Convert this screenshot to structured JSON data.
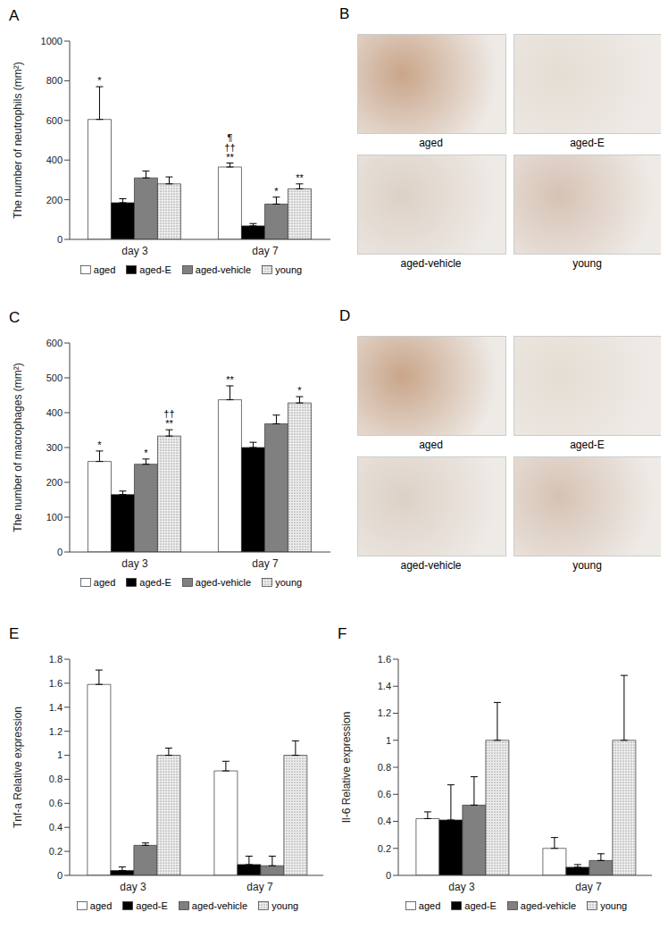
{
  "chart_data": [
    {
      "panel": "A",
      "type": "bar",
      "y_label": "The number of neutrophils (mm²)",
      "categories": [
        "day 3",
        "day 7"
      ],
      "ylim": [
        0,
        1000
      ],
      "yticks": [
        0,
        200,
        400,
        600,
        800,
        1000
      ],
      "grid": false,
      "legend": "bottom",
      "series": [
        {
          "name": "aged",
          "color": "#ffffff",
          "values": [
            605,
            365
          ],
          "errors": [
            165,
            20
          ],
          "annotations": [
            [
              "*"
            ],
            [
              "¶",
              "††",
              "**"
            ]
          ]
        },
        {
          "name": "aged-E",
          "color": "#000000",
          "values": [
            185,
            68
          ],
          "errors": [
            20,
            12
          ],
          "annotations": [
            [],
            []
          ]
        },
        {
          "name": "aged-vehicle",
          "color": "#808080",
          "values": [
            310,
            178
          ],
          "errors": [
            35,
            35
          ],
          "annotations": [
            [],
            [
              "*"
            ]
          ]
        },
        {
          "name": "young",
          "color": "#eeeeee",
          "values": [
            280,
            255
          ],
          "errors": [
            35,
            25
          ],
          "annotations": [
            [],
            [
              "**"
            ]
          ]
        }
      ]
    },
    {
      "panel": "C",
      "type": "bar",
      "y_label": "The number of macrophages (mm²)",
      "categories": [
        "day 3",
        "day 7"
      ],
      "ylim": [
        0,
        600
      ],
      "yticks": [
        0,
        100,
        200,
        300,
        400,
        500,
        600
      ],
      "grid": false,
      "legend": "bottom",
      "series": [
        {
          "name": "aged",
          "color": "#ffffff",
          "values": [
            260,
            437
          ],
          "errors": [
            30,
            40
          ],
          "annotations": [
            [
              "*"
            ],
            [
              "**"
            ]
          ]
        },
        {
          "name": "aged-E",
          "color": "#000000",
          "values": [
            165,
            300
          ],
          "errors": [
            10,
            15
          ],
          "annotations": [
            [],
            []
          ]
        },
        {
          "name": "aged-vehicle",
          "color": "#808080",
          "values": [
            252,
            368
          ],
          "errors": [
            15,
            25
          ],
          "annotations": [
            [
              "*"
            ],
            []
          ]
        },
        {
          "name": "young",
          "color": "#eeeeee",
          "values": [
            333,
            428
          ],
          "errors": [
            18,
            18
          ],
          "annotations": [
            [
              "††",
              "**"
            ],
            [
              "*"
            ]
          ]
        }
      ]
    },
    {
      "panel": "E",
      "type": "bar",
      "y_label": "Tnf-a Relative expression",
      "categories": [
        "day 3",
        "day 7"
      ],
      "ylim": [
        0,
        1.8
      ],
      "yticks": [
        0,
        0.2,
        0.4,
        0.6,
        0.8,
        1,
        1.2,
        1.4,
        1.6,
        1.8
      ],
      "grid": false,
      "legend": "bottom",
      "series": [
        {
          "name": "aged",
          "color": "#ffffff",
          "values": [
            1.59,
            0.87
          ],
          "errors": [
            0.12,
            0.08
          ],
          "annotations": [
            [],
            []
          ]
        },
        {
          "name": "aged-E",
          "color": "#000000",
          "values": [
            0.04,
            0.09
          ],
          "errors": [
            0.03,
            0.07
          ],
          "annotations": [
            [],
            []
          ]
        },
        {
          "name": "aged-vehicle",
          "color": "#808080",
          "values": [
            0.25,
            0.08
          ],
          "errors": [
            0.02,
            0.08
          ],
          "annotations": [
            [],
            []
          ]
        },
        {
          "name": "young",
          "color": "#eeeeee",
          "values": [
            1.0,
            1.0
          ],
          "errors": [
            0.06,
            0.12
          ],
          "annotations": [
            [],
            []
          ]
        }
      ]
    },
    {
      "panel": "F",
      "type": "bar",
      "y_label": "Il-6 Relative expression",
      "categories": [
        "day 3",
        "day 7"
      ],
      "ylim": [
        0,
        1.6
      ],
      "yticks": [
        0,
        0.2,
        0.4,
        0.6,
        0.8,
        1,
        1.2,
        1.4,
        1.6
      ],
      "grid": false,
      "legend": "bottom",
      "series": [
        {
          "name": "aged",
          "color": "#ffffff",
          "values": [
            0.42,
            0.2
          ],
          "errors": [
            0.05,
            0.08
          ],
          "annotations": [
            [],
            []
          ]
        },
        {
          "name": "aged-E",
          "color": "#000000",
          "values": [
            0.41,
            0.06
          ],
          "errors": [
            0.26,
            0.02
          ],
          "annotations": [
            [],
            []
          ]
        },
        {
          "name": "aged-vehicle",
          "color": "#808080",
          "values": [
            0.52,
            0.11
          ],
          "errors": [
            0.21,
            0.05
          ],
          "annotations": [
            [],
            []
          ]
        },
        {
          "name": "young",
          "color": "#eeeeee",
          "values": [
            1.0,
            1.0
          ],
          "errors": [
            0.28,
            0.48
          ],
          "annotations": [
            [],
            []
          ]
        }
      ]
    }
  ],
  "images": [
    {
      "panel": "B",
      "labels": [
        "aged",
        "aged-E",
        "aged-vehicle",
        "young"
      ]
    },
    {
      "panel": "D",
      "labels": [
        "aged",
        "aged-E",
        "aged-vehicle",
        "young"
      ]
    }
  ]
}
